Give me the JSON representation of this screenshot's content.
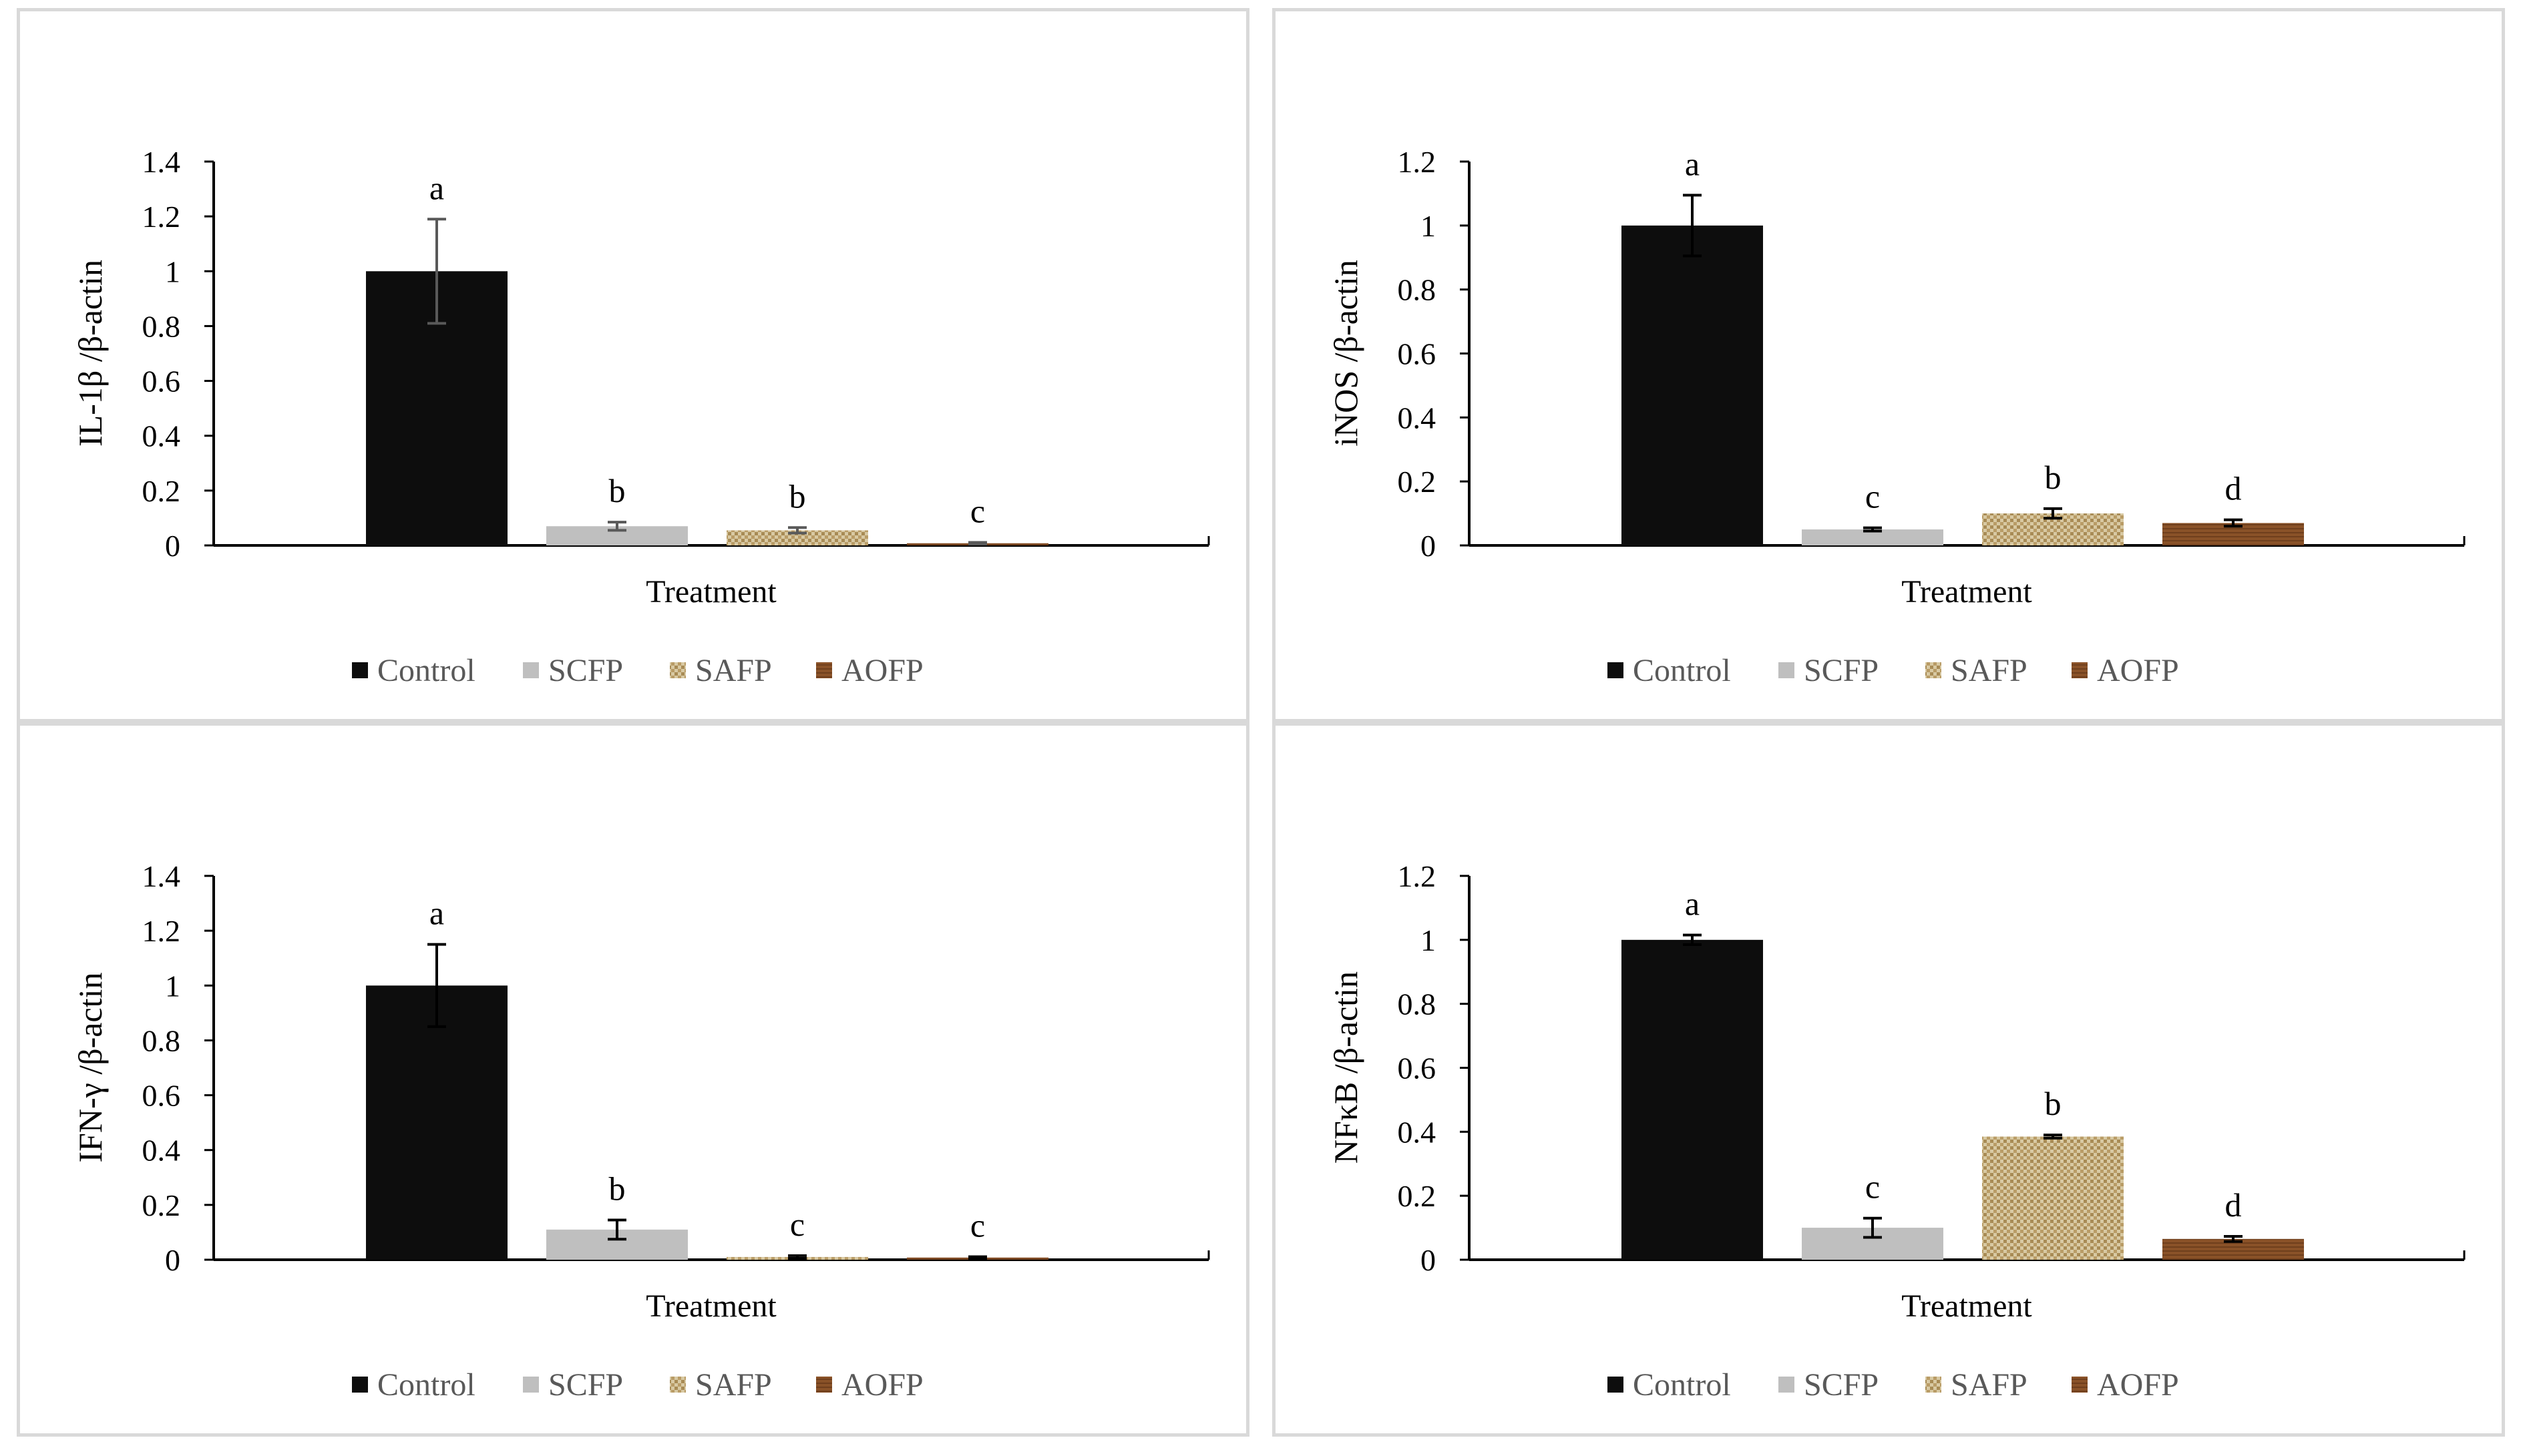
{
  "chart_data": [
    {
      "type": "bar",
      "title": "",
      "xlabel": "Treatment",
      "ylabel": "IL-1β /β-actin",
      "ylim": [
        0,
        1.4
      ],
      "ytick_step": 0.2,
      "yticks": [
        "0",
        "0.2",
        "0.4",
        "0.6",
        "0.8",
        "1",
        "1.2",
        "1.4"
      ],
      "categories": [
        "Control",
        "SCFP",
        "SAFP",
        "AOFP"
      ],
      "values": [
        1.0,
        0.07,
        0.055,
        0.008
      ],
      "errors": [
        0.19,
        0.015,
        0.01,
        0.003
      ],
      "significance": [
        "a",
        "b",
        "b",
        "c"
      ],
      "error_color": "#595959",
      "legend": [
        "Control",
        "SCFP",
        "SAFP",
        "AOFP"
      ],
      "legend_position": "bottom"
    },
    {
      "type": "bar",
      "title": "",
      "xlabel": "Treatment",
      "ylabel": "iNOS /β-actin",
      "ylim": [
        0,
        1.2
      ],
      "ytick_step": 0.2,
      "yticks": [
        "0",
        "0.2",
        "0.4",
        "0.6",
        "0.8",
        "1",
        "1.2"
      ],
      "categories": [
        "Control",
        "SCFP",
        "SAFP",
        "AOFP"
      ],
      "values": [
        1.0,
        0.05,
        0.1,
        0.07
      ],
      "errors": [
        0.095,
        0.005,
        0.015,
        0.01
      ],
      "significance": [
        "a",
        "c",
        "b",
        "d"
      ],
      "error_color": "#000000",
      "legend": [
        "Control",
        "SCFP",
        "SAFP",
        "AOFP"
      ],
      "legend_position": "bottom"
    },
    {
      "type": "bar",
      "title": "",
      "xlabel": "Treatment",
      "ylabel": "IFN-γ /β-actin",
      "ylim": [
        0,
        1.4
      ],
      "ytick_step": 0.2,
      "yticks": [
        "0",
        "0.2",
        "0.4",
        "0.6",
        "0.8",
        "1",
        "1.2",
        "1.4"
      ],
      "categories": [
        "Control",
        "SCFP",
        "SAFP",
        "AOFP"
      ],
      "values": [
        1.0,
        0.11,
        0.01,
        0.008
      ],
      "errors": [
        0.15,
        0.035,
        0.005,
        0.003
      ],
      "significance": [
        "a",
        "b",
        "c",
        "c"
      ],
      "error_color": "#000000",
      "legend": [
        "Control",
        "SCFP",
        "SAFP",
        "AOFP"
      ],
      "legend_position": "bottom"
    },
    {
      "type": "bar",
      "title": "",
      "xlabel": "Treatment",
      "ylabel": "NFκB /β-actin",
      "ylim": [
        0,
        1.2
      ],
      "ytick_step": 0.2,
      "yticks": [
        "0",
        "0.2",
        "0.4",
        "0.6",
        "0.8",
        "1",
        "1.2"
      ],
      "categories": [
        "Control",
        "SCFP",
        "SAFP",
        "AOFP"
      ],
      "values": [
        1.0,
        0.1,
        0.385,
        0.065
      ],
      "errors": [
        0.015,
        0.03,
        0.005,
        0.008
      ],
      "significance": [
        "a",
        "c",
        "b",
        "d"
      ],
      "error_color": "#000000",
      "legend": [
        "Control",
        "SCFP",
        "SAFP",
        "AOFP"
      ],
      "legend_position": "bottom"
    }
  ],
  "colors": {
    "Control": "#0d0d0d",
    "SCFP": "#bfbfbf",
    "SAFP": "#c9b48a",
    "AOFP": "#8a5228",
    "axis": "#000000",
    "panel_border": "#d9d9d9",
    "legend_text": "#595959"
  }
}
